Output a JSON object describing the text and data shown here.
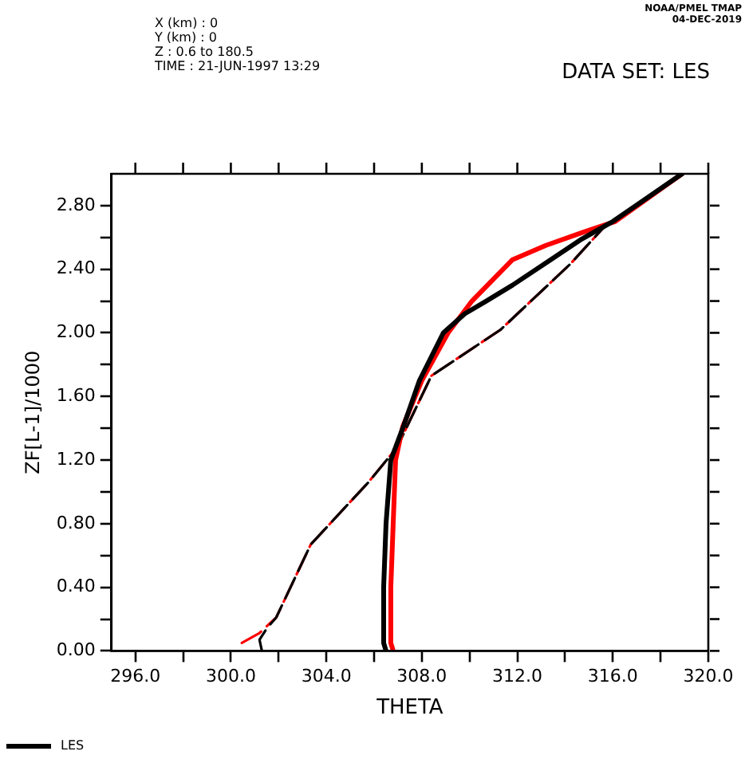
{
  "chart_data": {
    "type": "line",
    "title": "DATA SET: LES",
    "xlabel": "THETA",
    "ylabel": "ZF[L-1]/1000",
    "annotations": [
      "X (km) : 0",
      "Y (km) : 0",
      "Z : 0.6 to 180.5",
      "TIME : 21-JUN-1997 13:29",
      "NOAA/PMEL TMAP",
      "04-DEC-2019"
    ],
    "xlim": [
      295,
      320
    ],
    "ylim": [
      0,
      3.0
    ],
    "xticks": [
      {
        "value": 296,
        "label": "296.0"
      },
      {
        "value": 298,
        "label": null
      },
      {
        "value": 300,
        "label": "300.0"
      },
      {
        "value": 302,
        "label": null
      },
      {
        "value": 304,
        "label": "304.0"
      },
      {
        "value": 306,
        "label": null
      },
      {
        "value": 308,
        "label": "308.0"
      },
      {
        "value": 310,
        "label": null
      },
      {
        "value": 312,
        "label": "312.0"
      },
      {
        "value": 314,
        "label": null
      },
      {
        "value": 316,
        "label": "316.0"
      },
      {
        "value": 318,
        "label": null
      },
      {
        "value": 320,
        "label": "320.0"
      }
    ],
    "yticks": [
      {
        "value": 0,
        "label": "0.00"
      },
      {
        "value": 0.2,
        "label": null
      },
      {
        "value": 0.4,
        "label": "0.40"
      },
      {
        "value": 0.6,
        "label": null
      },
      {
        "value": 0.8,
        "label": "0.80"
      },
      {
        "value": 1.0,
        "label": null
      },
      {
        "value": 1.2,
        "label": "1.20"
      },
      {
        "value": 1.4,
        "label": null
      },
      {
        "value": 1.6,
        "label": "1.60"
      },
      {
        "value": 1.8,
        "label": null
      },
      {
        "value": 2.0,
        "label": "2.00"
      },
      {
        "value": 2.2,
        "label": null
      },
      {
        "value": 2.4,
        "label": "2.40"
      },
      {
        "value": 2.6,
        "label": null
      },
      {
        "value": 2.8,
        "label": "2.80"
      }
    ],
    "grid": false,
    "legend": "bottom left",
    "marker": "none",
    "series": [
      {
        "name": "LES",
        "color": "#000000",
        "line_style": "solid",
        "x": [
          306.5,
          306.4,
          306.4,
          306.5,
          306.7,
          307.2,
          307.9,
          308.9,
          309.8,
          310.7,
          311.8,
          313.3,
          314.7,
          316.0,
          318.9
        ],
        "values": [
          0,
          0.05,
          0.4,
          0.8,
          1.2,
          1.4,
          1.7,
          2.0,
          2.12,
          2.2,
          2.3,
          2.45,
          2.59,
          2.7,
          3.0
        ]
      },
      {
        "color": "#ff0000",
        "line_style": "solid",
        "x": [
          306.8,
          306.7,
          306.7,
          306.8,
          306.9,
          307.2,
          308.0,
          309.1,
          310.1,
          311.8,
          313.2,
          314.7,
          316.1,
          318.9
        ],
        "values": [
          0,
          0.05,
          0.4,
          0.8,
          1.2,
          1.41,
          1.7,
          2.0,
          2.2,
          2.46,
          2.55,
          2.63,
          2.7,
          3.0
        ]
      },
      {
        "color": "#000000",
        "line_style": "dashed",
        "x": [
          301.3,
          301.2,
          301.5,
          301.9,
          303.35,
          305.76,
          306.96,
          308.4,
          311.3,
          314.2,
          315.6
        ],
        "values": [
          0,
          0.07,
          0.14,
          0.21,
          0.67,
          1.06,
          1.28,
          1.73,
          2.02,
          2.43,
          2.66
        ]
      },
      {
        "color": "#ff0000",
        "line_style": "dashed",
        "x": [
          300.46,
          301.18,
          301.9,
          303.35,
          305.76,
          306.96,
          308.4,
          311.3,
          314.2,
          315.6
        ],
        "values": [
          0.05,
          0.11,
          0.21,
          0.67,
          1.06,
          1.28,
          1.73,
          2.02,
          2.43,
          2.66
        ]
      }
    ]
  }
}
